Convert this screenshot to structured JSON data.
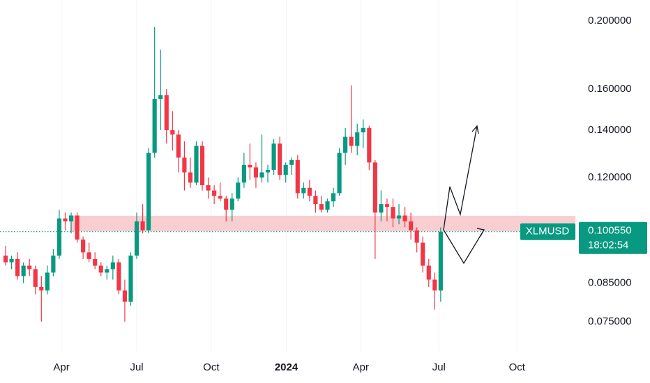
{
  "chart_data": {
    "type": "candlestick",
    "symbol": "XLMUSD",
    "last_price_label": "0.100550",
    "countdown": "18:02:54",
    "last_price": 0.10055,
    "log_scale": true,
    "up_color": "#089981",
    "down_color": "#f23645",
    "x": [
      0,
      1,
      2,
      3,
      4,
      5,
      6,
      7,
      8,
      9,
      10,
      11,
      12,
      13,
      14,
      15,
      16,
      17,
      18,
      19,
      20,
      21,
      22,
      23,
      24,
      25,
      26,
      27,
      28,
      29,
      30,
      31,
      32,
      33,
      34,
      35,
      36,
      37,
      38,
      39,
      40,
      41,
      42,
      43,
      44,
      45,
      46,
      47,
      48,
      49,
      50,
      51,
      52,
      53,
      54,
      55,
      56,
      57,
      58,
      59,
      60,
      61,
      62,
      63,
      64,
      65,
      66,
      67,
      68,
      69,
      70,
      71,
      72,
      73
    ],
    "open": [
      0.093,
      0.091,
      0.092,
      0.087,
      0.09,
      0.089,
      0.084,
      0.083,
      0.088,
      0.093,
      0.105,
      0.104,
      0.106,
      0.098,
      0.094,
      0.092,
      0.09,
      0.088,
      0.089,
      0.091,
      0.083,
      0.08,
      0.093,
      0.104,
      0.101,
      0.13,
      0.155,
      0.157,
      0.14,
      0.138,
      0.128,
      0.122,
      0.118,
      0.133,
      0.117,
      0.115,
      0.113,
      0.112,
      0.108,
      0.112,
      0.118,
      0.125,
      0.124,
      0.12,
      0.122,
      0.123,
      0.134,
      0.121,
      0.125,
      0.127,
      0.114,
      0.116,
      0.113,
      0.11,
      0.108,
      0.111,
      0.114,
      0.13,
      0.137,
      0.133,
      0.139,
      0.141,
      0.126,
      0.107,
      0.11,
      0.109,
      0.105,
      0.106,
      0.104,
      0.101,
      0.097,
      0.09,
      0.086,
      0.083
    ],
    "high": [
      0.096,
      0.093,
      0.094,
      0.091,
      0.092,
      0.09,
      0.087,
      0.09,
      0.095,
      0.108,
      0.107,
      0.107,
      0.107,
      0.099,
      0.097,
      0.094,
      0.091,
      0.09,
      0.093,
      0.092,
      0.086,
      0.094,
      0.107,
      0.11,
      0.132,
      0.196,
      0.182,
      0.16,
      0.149,
      0.14,
      0.135,
      0.128,
      0.135,
      0.135,
      0.12,
      0.117,
      0.118,
      0.113,
      0.114,
      0.12,
      0.13,
      0.134,
      0.126,
      0.138,
      0.125,
      0.136,
      0.137,
      0.126,
      0.128,
      0.129,
      0.118,
      0.119,
      0.115,
      0.113,
      0.112,
      0.116,
      0.132,
      0.141,
      0.162,
      0.143,
      0.145,
      0.142,
      0.127,
      0.115,
      0.112,
      0.112,
      0.11,
      0.109,
      0.107,
      0.102,
      0.099,
      0.092,
      0.088,
      0.102
    ],
    "low": [
      0.09,
      0.089,
      0.086,
      0.085,
      0.087,
      0.082,
      0.075,
      0.082,
      0.087,
      0.092,
      0.101,
      0.1,
      0.097,
      0.092,
      0.091,
      0.089,
      0.087,
      0.086,
      0.086,
      0.082,
      0.075,
      0.079,
      0.092,
      0.1,
      0.1,
      0.128,
      0.14,
      0.134,
      0.131,
      0.122,
      0.115,
      0.116,
      0.117,
      0.115,
      0.112,
      0.11,
      0.111,
      0.104,
      0.104,
      0.111,
      0.116,
      0.119,
      0.116,
      0.118,
      0.118,
      0.121,
      0.119,
      0.118,
      0.121,
      0.112,
      0.112,
      0.111,
      0.107,
      0.107,
      0.107,
      0.109,
      0.113,
      0.125,
      0.13,
      0.129,
      0.132,
      0.123,
      0.092,
      0.104,
      0.104,
      0.102,
      0.103,
      0.102,
      0.098,
      0.094,
      0.088,
      0.084,
      0.078,
      0.08
    ],
    "close": [
      0.091,
      0.092,
      0.087,
      0.09,
      0.089,
      0.084,
      0.083,
      0.088,
      0.093,
      0.105,
      0.104,
      0.106,
      0.098,
      0.094,
      0.092,
      0.09,
      0.088,
      0.089,
      0.091,
      0.083,
      0.08,
      0.093,
      0.104,
      0.101,
      0.13,
      0.155,
      0.157,
      0.14,
      0.138,
      0.128,
      0.122,
      0.118,
      0.133,
      0.117,
      0.115,
      0.113,
      0.112,
      0.108,
      0.112,
      0.118,
      0.125,
      0.124,
      0.12,
      0.122,
      0.123,
      0.134,
      0.121,
      0.125,
      0.127,
      0.114,
      0.116,
      0.113,
      0.11,
      0.108,
      0.111,
      0.114,
      0.13,
      0.137,
      0.133,
      0.139,
      0.141,
      0.126,
      0.107,
      0.11,
      0.109,
      0.105,
      0.106,
      0.104,
      0.101,
      0.097,
      0.09,
      0.086,
      0.083,
      0.10055
    ],
    "xlim": [
      -0.94,
      95.6
    ],
    "xticks": [
      {
        "value": 9.36,
        "label": "Apr"
      },
      {
        "value": 22.0,
        "label": "Jul"
      },
      {
        "value": 34.5,
        "label": "Oct"
      },
      {
        "value": 47.1,
        "label": "2024"
      },
      {
        "value": 59.6,
        "label": "Apr"
      },
      {
        "value": 72.7,
        "label": "Jul"
      },
      {
        "value": 85.8,
        "label": "Oct"
      }
    ],
    "ylim": [
      0.068,
      0.214
    ],
    "yticks": [
      {
        "value": 0.2,
        "label": "0.200000"
      },
      {
        "value": 0.16,
        "label": "0.160000"
      },
      {
        "value": 0.14,
        "label": "0.140000"
      },
      {
        "value": 0.12,
        "label": "0.120000"
      },
      {
        "value": 0.085,
        "label": "0.085000"
      },
      {
        "value": 0.075,
        "label": "0.075000"
      }
    ],
    "grid": true,
    "zone": {
      "y": [
        0.1007,
        0.1059
      ],
      "x": [
        10.8,
        95.6
      ],
      "color": "#f7c6c9"
    }
  }
}
